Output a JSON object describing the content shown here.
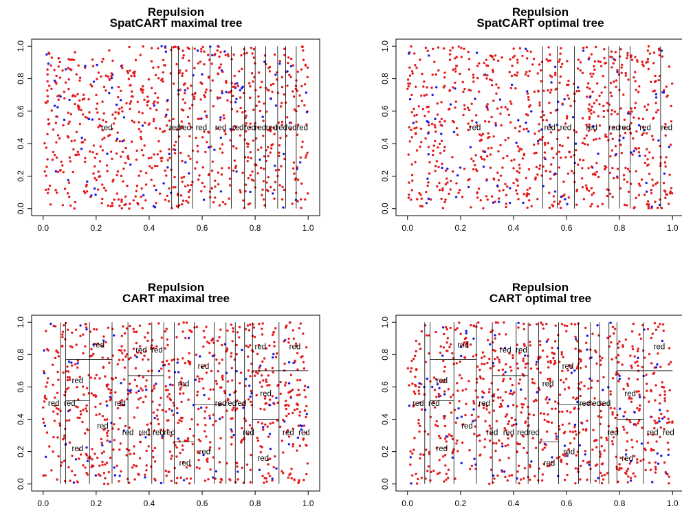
{
  "chart_data": [
    {
      "type": "scatter",
      "title": "Repulsion",
      "subtitle": "SpatCART maximal tree",
      "xlim": [
        0,
        1
      ],
      "ylim": [
        0,
        1
      ],
      "x_ticks": [
        "0.0",
        "0.2",
        "0.4",
        "0.6",
        "0.8",
        "1.0"
      ],
      "y_ticks": [
        "0.0",
        "0.2",
        "0.4",
        "0.6",
        "0.8",
        "1.0"
      ],
      "colors": {
        "red": "#e41a1c",
        "blue": "#1a1ae6"
      },
      "vsplits": [
        0.485,
        0.51,
        0.565,
        0.63,
        0.71,
        0.76,
        0.8,
        0.84,
        0.885,
        0.915,
        0.955
      ],
      "hsplits": [],
      "region_labels": [
        {
          "x": 0.24,
          "y": 0.5,
          "text": "red"
        },
        {
          "x": 0.497,
          "y": 0.5,
          "text": "red"
        },
        {
          "x": 0.537,
          "y": 0.5,
          "text": "red"
        },
        {
          "x": 0.597,
          "y": 0.5,
          "text": "red"
        },
        {
          "x": 0.67,
          "y": 0.5,
          "text": "red"
        },
        {
          "x": 0.735,
          "y": 0.5,
          "text": "red"
        },
        {
          "x": 0.78,
          "y": 0.5,
          "text": "red"
        },
        {
          "x": 0.82,
          "y": 0.5,
          "text": "red"
        },
        {
          "x": 0.862,
          "y": 0.5,
          "text": "red"
        },
        {
          "x": 0.9,
          "y": 0.5,
          "text": "red"
        },
        {
          "x": 0.935,
          "y": 0.5,
          "text": "red"
        },
        {
          "x": 0.978,
          "y": 0.5,
          "text": "red"
        }
      ],
      "legend": "none"
    },
    {
      "type": "scatter",
      "title": "Repulsion",
      "subtitle": "SpatCART optimal tree",
      "xlim": [
        0,
        1
      ],
      "ylim": [
        0,
        1
      ],
      "x_ticks": [
        "0.0",
        "0.2",
        "0.4",
        "0.6",
        "0.8",
        "1.0"
      ],
      "y_ticks": [
        "0.0",
        "0.2",
        "0.4",
        "0.6",
        "0.8",
        "1.0"
      ],
      "colors": {
        "red": "#e41a1c",
        "blue": "#1a1ae6"
      },
      "vsplits": [
        0.51,
        0.565,
        0.63,
        0.76,
        0.8,
        0.84,
        0.955
      ],
      "hsplits": [],
      "region_labels": [
        {
          "x": 0.255,
          "y": 0.5,
          "text": "red"
        },
        {
          "x": 0.537,
          "y": 0.5,
          "text": "red"
        },
        {
          "x": 0.597,
          "y": 0.5,
          "text": "red"
        },
        {
          "x": 0.695,
          "y": 0.5,
          "text": "red"
        },
        {
          "x": 0.78,
          "y": 0.5,
          "text": "red"
        },
        {
          "x": 0.82,
          "y": 0.5,
          "text": "red"
        },
        {
          "x": 0.897,
          "y": 0.5,
          "text": "red"
        },
        {
          "x": 0.978,
          "y": 0.5,
          "text": "red"
        }
      ],
      "legend": "none"
    },
    {
      "type": "scatter",
      "title": "Repulsion",
      "subtitle": "CART maximal tree",
      "xlim": [
        0,
        1
      ],
      "ylim": [
        0,
        1
      ],
      "x_ticks": [
        "0.0",
        "0.2",
        "0.4",
        "0.6",
        "0.8",
        "1.0"
      ],
      "y_ticks": [
        "0.0",
        "0.2",
        "0.4",
        "0.6",
        "0.8",
        "1.0"
      ],
      "colors": {
        "red": "#e41a1c",
        "blue": "#1a1ae6"
      },
      "vsplits": [
        0.065,
        0.085,
        0.175,
        0.26,
        0.32,
        0.41,
        0.455,
        0.495,
        0.57,
        0.645,
        0.69,
        0.725,
        0.76,
        0.79,
        0.89
      ],
      "hsplits": [
        {
          "x0": 0.085,
          "x1": 0.26,
          "y": 0.77
        },
        {
          "x0": 0.085,
          "x1": 0.175,
          "y": 0.515
        },
        {
          "x0": 0.32,
          "x1": 0.455,
          "y": 0.67
        },
        {
          "x0": 0.495,
          "x1": 0.57,
          "y": 0.26
        },
        {
          "x0": 0.57,
          "x1": 0.69,
          "y": 0.49
        },
        {
          "x0": 0.79,
          "x1": 1.0,
          "y": 0.7
        },
        {
          "x0": 0.79,
          "x1": 0.89,
          "y": 0.4
        }
      ],
      "region_labels": [
        {
          "x": 0.21,
          "y": 0.86,
          "text": "red"
        },
        {
          "x": 0.37,
          "y": 0.83,
          "text": "red"
        },
        {
          "x": 0.43,
          "y": 0.83,
          "text": "red"
        },
        {
          "x": 0.82,
          "y": 0.85,
          "text": "red"
        },
        {
          "x": 0.95,
          "y": 0.85,
          "text": "red"
        },
        {
          "x": 0.605,
          "y": 0.73,
          "text": "red"
        },
        {
          "x": 0.13,
          "y": 0.64,
          "text": "red"
        },
        {
          "x": 0.53,
          "y": 0.62,
          "text": "red"
        },
        {
          "x": 0.84,
          "y": 0.56,
          "text": "red"
        },
        {
          "x": 0.04,
          "y": 0.5,
          "text": "red"
        },
        {
          "x": 0.1,
          "y": 0.5,
          "text": "red"
        },
        {
          "x": 0.29,
          "y": 0.5,
          "text": "red"
        },
        {
          "x": 0.67,
          "y": 0.5,
          "text": "red"
        },
        {
          "x": 0.708,
          "y": 0.5,
          "text": "red"
        },
        {
          "x": 0.745,
          "y": 0.5,
          "text": "red"
        },
        {
          "x": 0.225,
          "y": 0.36,
          "text": "red"
        },
        {
          "x": 0.32,
          "y": 0.32,
          "text": "red"
        },
        {
          "x": 0.382,
          "y": 0.32,
          "text": "red"
        },
        {
          "x": 0.435,
          "y": 0.32,
          "text": "red"
        },
        {
          "x": 0.477,
          "y": 0.32,
          "text": "red"
        },
        {
          "x": 0.775,
          "y": 0.32,
          "text": "red"
        },
        {
          "x": 0.925,
          "y": 0.32,
          "text": "red"
        },
        {
          "x": 0.985,
          "y": 0.32,
          "text": "red"
        },
        {
          "x": 0.13,
          "y": 0.22,
          "text": "red"
        },
        {
          "x": 0.61,
          "y": 0.2,
          "text": "red"
        },
        {
          "x": 0.83,
          "y": 0.16,
          "text": "red"
        },
        {
          "x": 0.535,
          "y": 0.13,
          "text": "red"
        }
      ],
      "legend": "none"
    },
    {
      "type": "scatter",
      "title": "Repulsion",
      "subtitle": "CART optimal tree",
      "xlim": [
        0,
        1
      ],
      "ylim": [
        0,
        1
      ],
      "x_ticks": [
        "0.0",
        "0.2",
        "0.4",
        "0.6",
        "0.8",
        "1.0"
      ],
      "y_ticks": [
        "0.0",
        "0.2",
        "0.4",
        "0.6",
        "0.8",
        "1.0"
      ],
      "colors": {
        "red": "#e41a1c",
        "blue": "#1a1ae6"
      },
      "vsplits": [
        0.065,
        0.085,
        0.175,
        0.26,
        0.32,
        0.41,
        0.455,
        0.495,
        0.57,
        0.645,
        0.69,
        0.725,
        0.76,
        0.79,
        0.89
      ],
      "hsplits": [
        {
          "x0": 0.085,
          "x1": 0.26,
          "y": 0.77
        },
        {
          "x0": 0.085,
          "x1": 0.175,
          "y": 0.515
        },
        {
          "x0": 0.32,
          "x1": 0.455,
          "y": 0.67
        },
        {
          "x0": 0.495,
          "x1": 0.57,
          "y": 0.26
        },
        {
          "x0": 0.57,
          "x1": 0.69,
          "y": 0.49
        },
        {
          "x0": 0.79,
          "x1": 1.0,
          "y": 0.7
        },
        {
          "x0": 0.79,
          "x1": 0.89,
          "y": 0.4
        }
      ],
      "region_labels": [
        {
          "x": 0.21,
          "y": 0.86,
          "text": "red"
        },
        {
          "x": 0.37,
          "y": 0.83,
          "text": "red"
        },
        {
          "x": 0.43,
          "y": 0.83,
          "text": "red"
        },
        {
          "x": 0.95,
          "y": 0.85,
          "text": "red"
        },
        {
          "x": 0.605,
          "y": 0.73,
          "text": "red"
        },
        {
          "x": 0.13,
          "y": 0.64,
          "text": "red"
        },
        {
          "x": 0.53,
          "y": 0.62,
          "text": "red"
        },
        {
          "x": 0.84,
          "y": 0.56,
          "text": "red"
        },
        {
          "x": 0.04,
          "y": 0.5,
          "text": "red"
        },
        {
          "x": 0.1,
          "y": 0.5,
          "text": "red"
        },
        {
          "x": 0.29,
          "y": 0.5,
          "text": "red"
        },
        {
          "x": 0.67,
          "y": 0.5,
          "text": "red"
        },
        {
          "x": 0.708,
          "y": 0.5,
          "text": "red"
        },
        {
          "x": 0.745,
          "y": 0.5,
          "text": "red"
        },
        {
          "x": 0.225,
          "y": 0.36,
          "text": "red"
        },
        {
          "x": 0.32,
          "y": 0.32,
          "text": "red"
        },
        {
          "x": 0.382,
          "y": 0.32,
          "text": "red"
        },
        {
          "x": 0.435,
          "y": 0.32,
          "text": "red"
        },
        {
          "x": 0.477,
          "y": 0.32,
          "text": "red"
        },
        {
          "x": 0.775,
          "y": 0.32,
          "text": "red"
        },
        {
          "x": 0.925,
          "y": 0.32,
          "text": "red"
        },
        {
          "x": 0.985,
          "y": 0.32,
          "text": "red"
        },
        {
          "x": 0.13,
          "y": 0.22,
          "text": "red"
        },
        {
          "x": 0.61,
          "y": 0.2,
          "text": "red"
        },
        {
          "x": 0.83,
          "y": 0.16,
          "text": "red"
        },
        {
          "x": 0.535,
          "y": 0.13,
          "text": "red"
        }
      ],
      "legend": "none"
    }
  ]
}
